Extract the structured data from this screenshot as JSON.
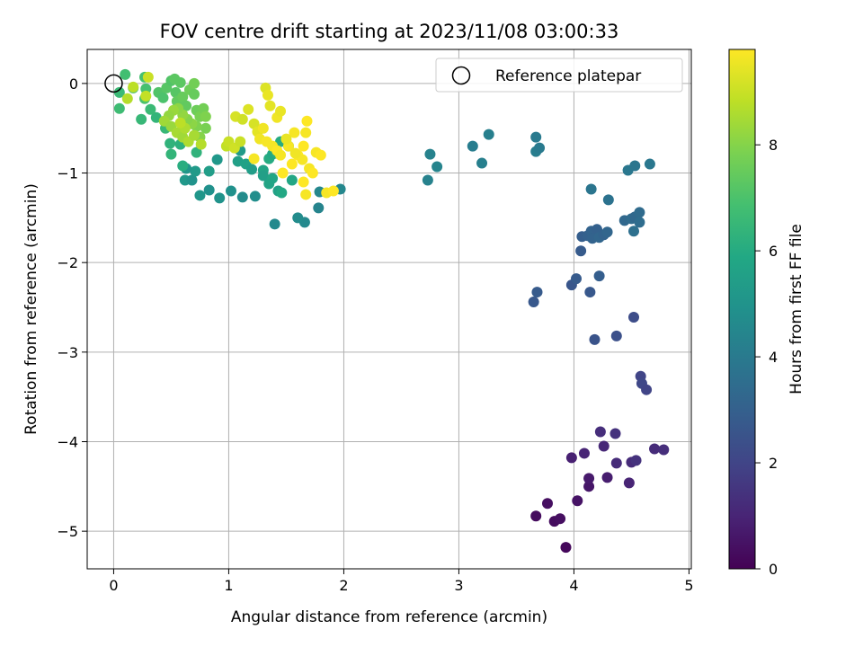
{
  "chart_data": {
    "type": "scatter",
    "title": "FOV centre drift starting at 2023/11/08 03:00:33",
    "xlabel": "Angular distance from reference (arcmin)",
    "ylabel": "Rotation from reference (arcmin)",
    "xlim": [
      -0.23,
      5.02
    ],
    "ylim": [
      -5.42,
      0.38
    ],
    "xticks": [
      0,
      1,
      2,
      3,
      4,
      5
    ],
    "yticks": [
      0,
      -1,
      -2,
      -3,
      -4,
      -5
    ],
    "xtick_labels": [
      "0",
      "1",
      "2",
      "3",
      "4",
      "5"
    ],
    "ytick_labels": [
      "0",
      "−1",
      "−2",
      "−3",
      "−4",
      "−5"
    ],
    "grid": true,
    "legend": {
      "placement": "top-right",
      "entries": [
        "Reference platepar"
      ]
    },
    "reference_point": {
      "x": 0,
      "y": 0
    },
    "colorbar": {
      "label": "Hours from first FF file",
      "colormap": "viridis",
      "range": [
        0,
        9.8
      ],
      "ticks": [
        0,
        2,
        4,
        6,
        8
      ],
      "tick_labels": [
        "0",
        "2",
        "4",
        "6",
        "8"
      ]
    },
    "points": [
      [
        3.93,
        -5.18,
        0.2
      ],
      [
        3.67,
        -4.83,
        0.3
      ],
      [
        3.77,
        -4.69,
        0.4
      ],
      [
        3.83,
        -4.89,
        0.3
      ],
      [
        3.88,
        -4.86,
        0.4
      ],
      [
        4.03,
        -4.66,
        0.5
      ],
      [
        4.13,
        -4.5,
        0.6
      ],
      [
        4.13,
        -4.41,
        0.7
      ],
      [
        4.29,
        -4.4,
        0.8
      ],
      [
        3.98,
        -4.18,
        0.9
      ],
      [
        4.09,
        -4.13,
        1.0
      ],
      [
        4.26,
        -4.05,
        1.1
      ],
      [
        4.37,
        -4.24,
        1.2
      ],
      [
        4.23,
        -3.89,
        1.3
      ],
      [
        4.36,
        -3.91,
        1.4
      ],
      [
        4.48,
        -4.46,
        1.0
      ],
      [
        4.5,
        -4.23,
        1.2
      ],
      [
        4.54,
        -4.21,
        1.4
      ],
      [
        4.7,
        -4.08,
        1.2
      ],
      [
        4.78,
        -4.09,
        1.3
      ],
      [
        4.58,
        -3.27,
        2.0
      ],
      [
        4.59,
        -3.35,
        2.1
      ],
      [
        4.63,
        -3.42,
        2.0
      ],
      [
        4.52,
        -2.61,
        2.3
      ],
      [
        4.37,
        -2.82,
        2.4
      ],
      [
        4.18,
        -2.86,
        2.5
      ],
      [
        3.65,
        -2.44,
        2.7
      ],
      [
        3.68,
        -2.33,
        2.8
      ],
      [
        3.98,
        -2.25,
        2.6
      ],
      [
        4.02,
        -2.18,
        2.8
      ],
      [
        4.14,
        -2.33,
        2.7
      ],
      [
        4.22,
        -2.15,
        2.9
      ],
      [
        4.06,
        -1.87,
        2.8
      ],
      [
        4.07,
        -1.71,
        2.9
      ],
      [
        4.12,
        -1.7,
        3.0
      ],
      [
        4.15,
        -1.65,
        3.1
      ],
      [
        4.2,
        -1.63,
        3.0
      ],
      [
        4.16,
        -1.73,
        3.1
      ],
      [
        4.22,
        -1.72,
        3.2
      ],
      [
        4.26,
        -1.69,
        3.1
      ],
      [
        4.29,
        -1.66,
        3.2
      ],
      [
        4.44,
        -1.53,
        3.3
      ],
      [
        4.5,
        -1.51,
        3.4
      ],
      [
        4.53,
        -1.49,
        3.3
      ],
      [
        4.57,
        -1.44,
        3.4
      ],
      [
        4.57,
        -1.55,
        3.5
      ],
      [
        4.52,
        -1.65,
        3.6
      ],
      [
        4.3,
        -1.3,
        3.7
      ],
      [
        4.15,
        -1.18,
        3.8
      ],
      [
        4.47,
        -0.97,
        3.9
      ],
      [
        4.53,
        -0.92,
        3.8
      ],
      [
        4.66,
        -0.9,
        3.9
      ],
      [
        3.67,
        -0.6,
        4.0
      ],
      [
        3.67,
        -0.76,
        4.1
      ],
      [
        3.7,
        -0.72,
        4.0
      ],
      [
        3.26,
        -0.57,
        4.2
      ],
      [
        3.12,
        -0.7,
        4.1
      ],
      [
        3.2,
        -0.89,
        4.2
      ],
      [
        2.75,
        -0.79,
        4.3
      ],
      [
        2.81,
        -0.93,
        4.4
      ],
      [
        2.73,
        -1.08,
        4.3
      ],
      [
        1.97,
        -1.18,
        4.5
      ],
      [
        1.78,
        -1.39,
        4.4
      ],
      [
        1.79,
        -1.21,
        4.5
      ],
      [
        1.66,
        -1.55,
        4.6
      ],
      [
        1.6,
        -1.5,
        4.7
      ],
      [
        1.4,
        -1.57,
        4.6
      ],
      [
        1.23,
        -1.26,
        4.8
      ],
      [
        1.12,
        -1.27,
        4.7
      ],
      [
        1.02,
        -1.2,
        4.9
      ],
      [
        0.92,
        -1.28,
        5.0
      ],
      [
        0.83,
        -1.19,
        4.9
      ],
      [
        0.75,
        -1.25,
        5.1
      ],
      [
        0.62,
        -1.08,
        5.2
      ],
      [
        0.68,
        -1.08,
        5.0
      ],
      [
        0.71,
        -0.98,
        5.3
      ],
      [
        0.63,
        -0.95,
        5.1
      ],
      [
        0.83,
        -0.98,
        5.4
      ],
      [
        0.9,
        -0.85,
        5.2
      ],
      [
        1.08,
        -0.87,
        5.5
      ],
      [
        1.1,
        -0.75,
        5.3
      ],
      [
        1.15,
        -0.9,
        5.6
      ],
      [
        1.2,
        -0.96,
        5.4
      ],
      [
        1.3,
        -0.97,
        5.7
      ],
      [
        1.3,
        -1.03,
        5.5
      ],
      [
        1.38,
        -1.06,
        5.8
      ],
      [
        1.43,
        -1.2,
        5.6
      ],
      [
        1.46,
        -1.22,
        5.9
      ],
      [
        1.35,
        -1.12,
        5.7
      ],
      [
        1.55,
        -1.08,
        5.8
      ],
      [
        1.35,
        -0.84,
        6.0
      ],
      [
        1.38,
        -0.79,
        5.9
      ],
      [
        1.42,
        -0.78,
        6.1
      ],
      [
        1.45,
        -0.65,
        6.0
      ],
      [
        1.52,
        -0.7,
        6.2
      ],
      [
        0.6,
        -0.92,
        6.1
      ],
      [
        0.72,
        -0.77,
        6.3
      ],
      [
        0.58,
        -0.68,
        6.2
      ],
      [
        0.5,
        -0.79,
        6.4
      ],
      [
        0.49,
        -0.67,
        6.3
      ],
      [
        0.45,
        -0.5,
        6.5
      ],
      [
        0.37,
        -0.38,
        6.4
      ],
      [
        0.32,
        -0.29,
        6.6
      ],
      [
        0.24,
        -0.4,
        6.5
      ],
      [
        0.05,
        -0.28,
        6.7
      ],
      [
        0.05,
        -0.1,
        6.6
      ],
      [
        0.1,
        0.1,
        6.8
      ],
      [
        0.17,
        -0.05,
        6.7
      ],
      [
        0.28,
        -0.06,
        6.9
      ],
      [
        0.27,
        -0.17,
        7.0
      ],
      [
        0.27,
        0.07,
        6.9
      ],
      [
        0.39,
        -0.1,
        7.1
      ],
      [
        0.43,
        -0.16,
        7.0
      ],
      [
        0.46,
        -0.05,
        7.2
      ],
      [
        0.5,
        0.03,
        7.1
      ],
      [
        0.53,
        0.05,
        7.3
      ],
      [
        0.54,
        -0.1,
        7.2
      ],
      [
        0.55,
        -0.2,
        7.4
      ],
      [
        0.58,
        0.01,
        7.3
      ],
      [
        0.6,
        -0.15,
        7.5
      ],
      [
        0.63,
        -0.25,
        7.4
      ],
      [
        0.66,
        -0.07,
        7.6
      ],
      [
        0.7,
        -0.12,
        7.5
      ],
      [
        0.7,
        0.0,
        7.7
      ],
      [
        0.72,
        -0.3,
        7.6
      ],
      [
        0.75,
        -0.37,
        7.8
      ],
      [
        0.78,
        -0.28,
        7.7
      ],
      [
        0.8,
        -0.37,
        7.9
      ],
      [
        0.8,
        -0.5,
        7.8
      ],
      [
        0.75,
        -0.6,
        8.0
      ],
      [
        0.72,
        -0.48,
        7.9
      ],
      [
        0.68,
        -0.45,
        8.1
      ],
      [
        0.64,
        -0.4,
        8.0
      ],
      [
        0.6,
        -0.35,
        8.2
      ],
      [
        0.56,
        -0.28,
        8.1
      ],
      [
        0.52,
        -0.3,
        8.3
      ],
      [
        0.48,
        -0.36,
        8.2
      ],
      [
        0.44,
        -0.42,
        8.4
      ],
      [
        0.5,
        -0.48,
        8.3
      ],
      [
        0.55,
        -0.55,
        8.5
      ],
      [
        0.6,
        -0.6,
        8.4
      ],
      [
        0.65,
        -0.65,
        8.6
      ],
      [
        0.7,
        -0.58,
        8.5
      ],
      [
        0.76,
        -0.68,
        8.7
      ],
      [
        0.62,
        -0.5,
        8.6
      ],
      [
        0.58,
        -0.44,
        8.8
      ],
      [
        0.12,
        -0.17,
        8.7
      ],
      [
        0.17,
        -0.04,
        8.8
      ],
      [
        0.28,
        -0.14,
        8.9
      ],
      [
        0.3,
        0.07,
        9.0
      ],
      [
        0.98,
        -0.7,
        8.9
      ],
      [
        1.0,
        -0.65,
        9.0
      ],
      [
        1.05,
        -0.72,
        9.1
      ],
      [
        1.1,
        -0.65,
        9.0
      ],
      [
        1.06,
        -0.37,
        9.2
      ],
      [
        1.12,
        -0.4,
        9.1
      ],
      [
        1.17,
        -0.29,
        9.3
      ],
      [
        1.22,
        -0.45,
        9.2
      ],
      [
        1.25,
        -0.54,
        9.4
      ],
      [
        1.32,
        -0.05,
        9.3
      ],
      [
        1.34,
        -0.13,
        9.5
      ],
      [
        1.36,
        -0.25,
        9.4
      ],
      [
        1.42,
        -0.38,
        9.6
      ],
      [
        1.45,
        -0.31,
        9.5
      ],
      [
        1.3,
        -0.5,
        9.6
      ],
      [
        1.22,
        -0.84,
        9.7
      ],
      [
        1.27,
        -0.62,
        9.6
      ],
      [
        1.33,
        -0.65,
        9.7
      ],
      [
        1.38,
        -0.7,
        9.7
      ],
      [
        1.42,
        -0.75,
        9.8
      ],
      [
        1.45,
        -0.8,
        9.7
      ],
      [
        1.47,
        -1.0,
        9.8
      ],
      [
        1.52,
        -0.7,
        9.7
      ],
      [
        1.55,
        -0.9,
        9.8
      ],
      [
        1.57,
        -0.55,
        9.7
      ],
      [
        1.6,
        -0.8,
        9.8
      ],
      [
        1.64,
        -0.85,
        9.7
      ],
      [
        1.65,
        -0.7,
        9.8
      ],
      [
        1.67,
        -0.55,
        9.7
      ],
      [
        1.68,
        -0.42,
        9.8
      ],
      [
        1.7,
        -0.95,
        9.7
      ],
      [
        1.65,
        -1.1,
        9.8
      ],
      [
        1.67,
        -1.24,
        9.7
      ],
      [
        1.73,
        -1.0,
        9.8
      ],
      [
        1.76,
        -0.77,
        9.7
      ],
      [
        1.8,
        -0.8,
        9.8
      ],
      [
        1.85,
        -1.22,
        9.7
      ],
      [
        1.91,
        -1.2,
        9.8
      ],
      [
        1.58,
        -0.78,
        9.6
      ],
      [
        1.5,
        -0.62,
        9.5
      ]
    ]
  }
}
